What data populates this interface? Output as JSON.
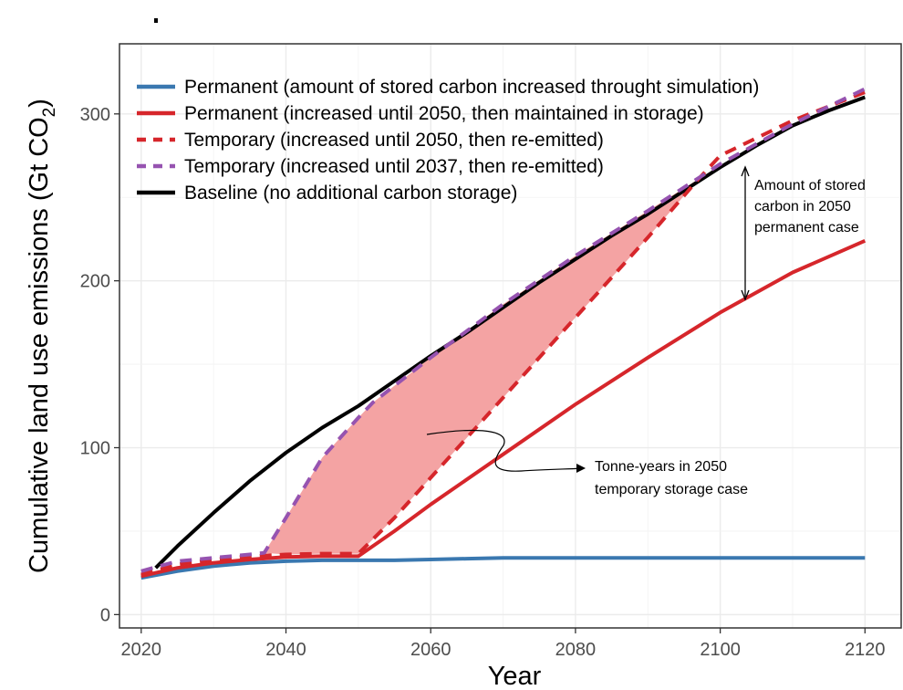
{
  "chart_data": {
    "type": "line",
    "title": "",
    "xlabel": "Year",
    "ylabel": "Cumulative land use emissions (Gt CO",
    "ylabel_subscript": "2",
    "ylabel_close": ")",
    "xlim": [
      2017,
      2125
    ],
    "ylim": [
      -8,
      342
    ],
    "x_ticks": [
      2020,
      2040,
      2060,
      2080,
      2100,
      2120
    ],
    "y_ticks": [
      0,
      100,
      200,
      300
    ],
    "grid": true,
    "legend_position": "top-left",
    "colors": {
      "permanent_blue": "#3a78b0",
      "red": "#d6262b",
      "purple": "#9653b0",
      "black": "#000000",
      "shade": "#f4a3a3"
    },
    "series": [
      {
        "name": "Permanent (amount of stored carbon increased throught simulation)",
        "color": "#3a78b0",
        "dash": "solid",
        "x": [
          2020,
          2025,
          2030,
          2035,
          2040,
          2045,
          2050,
          2055,
          2060,
          2065,
          2070,
          2080,
          2090,
          2100,
          2110,
          2120
        ],
        "y": [
          22,
          26,
          29,
          31,
          32,
          32.5,
          32.5,
          32.5,
          33,
          33.5,
          34,
          34,
          34,
          34,
          34,
          34
        ]
      },
      {
        "name": "Permanent (increased until 2050, then maintained in storage)",
        "color": "#d6262b",
        "dash": "solid",
        "x": [
          2020,
          2025,
          2030,
          2035,
          2040,
          2045,
          2050,
          2055,
          2060,
          2070,
          2080,
          2090,
          2100,
          2110,
          2120
        ],
        "y": [
          23,
          28,
          31,
          33,
          34.5,
          35,
          35,
          50,
          66,
          96,
          126,
          154,
          181,
          205,
          224
        ]
      },
      {
        "name": "Temporary (increased until 2050, then re-emitted)",
        "color": "#d6262b",
        "dash": "dashed",
        "x": [
          2020,
          2025,
          2030,
          2035,
          2040,
          2045,
          2050,
          2055,
          2060,
          2070,
          2080,
          2090,
          2097,
          2100,
          2110,
          2120
        ],
        "y": [
          24,
          30,
          33,
          35,
          36,
          36.5,
          36.5,
          58,
          82,
          130,
          178,
          226,
          261,
          275,
          296,
          313
        ]
      },
      {
        "name": "Temporary (increased until 2037, then re-emitted)",
        "color": "#9653b0",
        "dash": "dashed",
        "x": [
          2020,
          2025,
          2030,
          2035,
          2037,
          2040,
          2045,
          2050,
          2052,
          2060,
          2070,
          2080,
          2090,
          2100,
          2110,
          2120
        ],
        "y": [
          26,
          32,
          34,
          36,
          37,
          58,
          94,
          118,
          127,
          154,
          186,
          215,
          242,
          270,
          294,
          315
        ]
      },
      {
        "name": "Baseline (no additional carbon storage)",
        "color": "#000000",
        "dash": "solid",
        "x": [
          2022,
          2025,
          2030,
          2035,
          2040,
          2045,
          2050,
          2055,
          2060,
          2065,
          2070,
          2075,
          2080,
          2085,
          2090,
          2095,
          2100,
          2105,
          2110,
          2115,
          2120
        ],
        "y": [
          28,
          41,
          61,
          80,
          97,
          112,
          125,
          140,
          155,
          169,
          184,
          199,
          213,
          227,
          240,
          254,
          268,
          281,
          293,
          302,
          310
        ]
      }
    ],
    "annotations": [
      {
        "lines": [
          "Amount of stored",
          "carbon in 2050",
          "permanent case"
        ]
      },
      {
        "lines": [
          "Tonne-years in 2050",
          "temporary storage case"
        ]
      }
    ]
  }
}
